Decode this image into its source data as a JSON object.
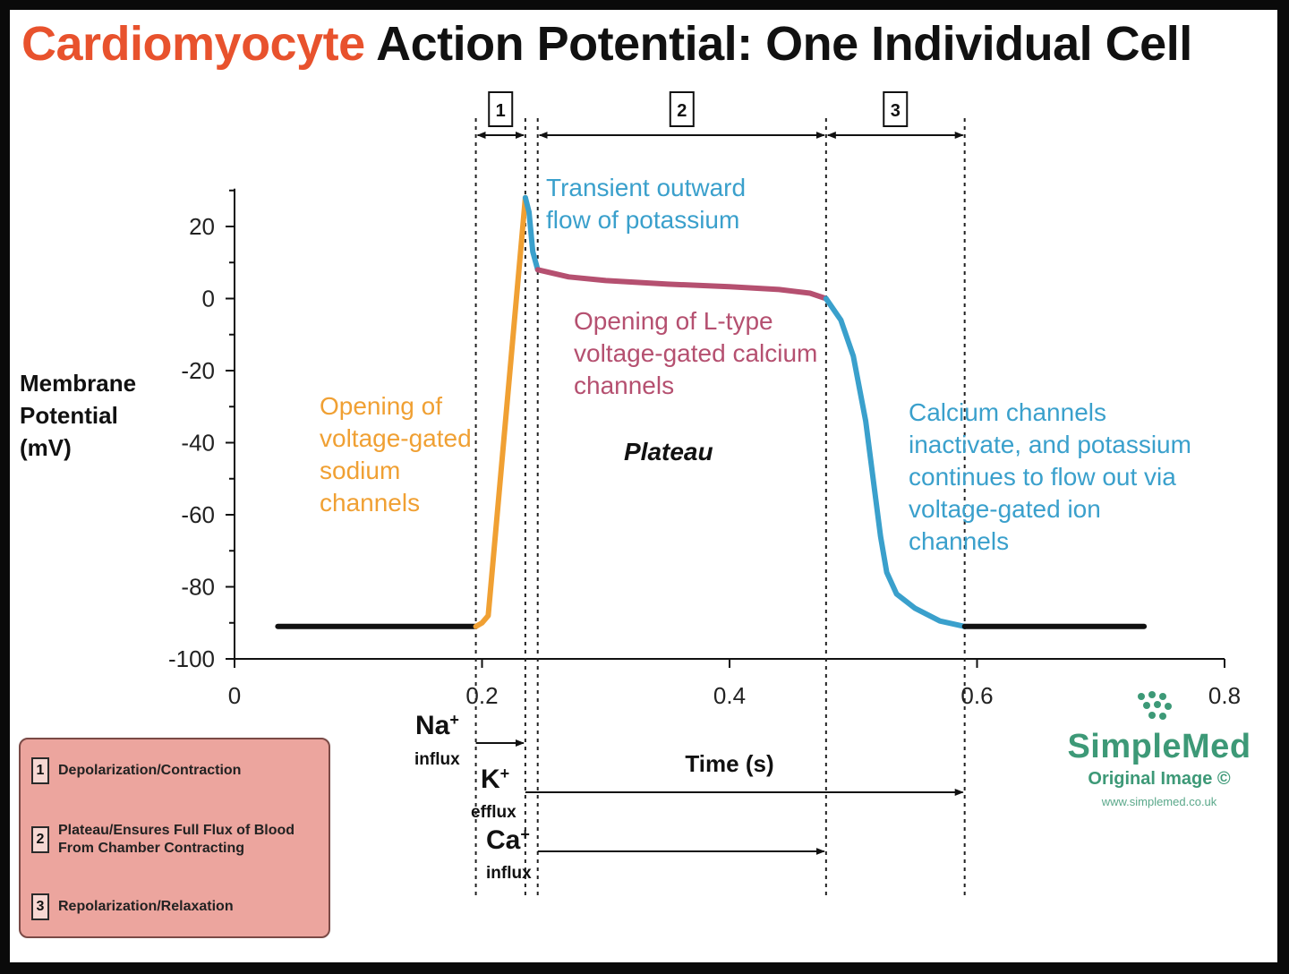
{
  "title": {
    "highlight": "Cardiomyocyte",
    "rest": "Action Potential: One Individual Cell"
  },
  "colors": {
    "title_highlight": "#e8522d",
    "sodium": "#f0a033",
    "potassium": "#3aa0cc",
    "calcium": "#b55070",
    "resting": "#111111",
    "legend_bg": "#eca59e",
    "brand": "#3d9977"
  },
  "chart_data": {
    "type": "line",
    "xlabel": "Time (s)",
    "ylabel": "Membrane Potential (mV)",
    "xlim": [
      0,
      0.8
    ],
    "ylim": [
      -100,
      30
    ],
    "x_ticks": [
      "0",
      "0.2",
      "0.4",
      "0.6",
      "0.8"
    ],
    "y_ticks": [
      "20",
      "0",
      "-20",
      "-40",
      "-60",
      "-80",
      "-100"
    ],
    "series": [
      {
        "segment": "resting",
        "color": "#111111",
        "points": [
          [
            0.035,
            -91
          ],
          [
            0.195,
            -91
          ]
        ]
      },
      {
        "segment": "depolarization",
        "color": "#f0a033",
        "points": [
          [
            0.195,
            -91
          ],
          [
            0.2,
            -90
          ],
          [
            0.205,
            -88
          ],
          [
            0.235,
            28
          ]
        ]
      },
      {
        "segment": "early-repolarization",
        "color": "#3aa0cc",
        "points": [
          [
            0.235,
            28
          ],
          [
            0.238,
            24
          ],
          [
            0.241,
            13
          ],
          [
            0.245,
            8
          ]
        ]
      },
      {
        "segment": "plateau",
        "color": "#b55070",
        "points": [
          [
            0.245,
            8
          ],
          [
            0.27,
            6
          ],
          [
            0.3,
            5
          ],
          [
            0.35,
            4
          ],
          [
            0.4,
            3.3
          ],
          [
            0.44,
            2.5
          ],
          [
            0.465,
            1.5
          ],
          [
            0.478,
            0
          ]
        ]
      },
      {
        "segment": "repolarization",
        "color": "#3aa0cc",
        "points": [
          [
            0.478,
            0
          ],
          [
            0.49,
            -6
          ],
          [
            0.5,
            -16
          ],
          [
            0.51,
            -34
          ],
          [
            0.516,
            -50
          ],
          [
            0.522,
            -66
          ],
          [
            0.527,
            -76
          ],
          [
            0.535,
            -82
          ],
          [
            0.55,
            -86
          ],
          [
            0.57,
            -89.5
          ],
          [
            0.59,
            -91
          ]
        ]
      },
      {
        "segment": "resting",
        "color": "#111111",
        "points": [
          [
            0.59,
            -91
          ],
          [
            0.735,
            -91
          ]
        ]
      }
    ],
    "phases": [
      {
        "label": "1",
        "x_start": 0.195,
        "x_end": 0.235
      },
      {
        "label": "2",
        "x_start": 0.245,
        "x_end": 0.478
      },
      {
        "label": "3",
        "x_start": 0.478,
        "x_end": 0.59
      }
    ],
    "ion_flows": [
      {
        "ion": "Na",
        "superscript": "+",
        "direction": "influx",
        "x_start": 0.195,
        "x_end": 0.235
      },
      {
        "ion": "K",
        "superscript": "+",
        "direction": "efflux",
        "x_start": 0.235,
        "x_end": 0.59
      },
      {
        "ion": "Ca",
        "superscript": "+",
        "direction": "influx",
        "x_start": 0.245,
        "x_end": 0.478
      }
    ],
    "annotations": [
      {
        "color": "#f0a033",
        "lines": [
          "Opening of",
          "voltage-gated",
          "sodium",
          "channels"
        ]
      },
      {
        "color": "#3aa0cc",
        "lines": [
          "Transient outward",
          "flow of potassium"
        ]
      },
      {
        "color": "#b55070",
        "lines": [
          "Opening of L-type",
          "voltage-gated calcium",
          "channels"
        ]
      },
      {
        "color": "#111111",
        "lines": [
          "Plateau"
        ]
      },
      {
        "color": "#3aa0cc",
        "lines": [
          "Calcium channels",
          "inactivate, and potassium",
          "continues to flow out via",
          "voltage-gated ion",
          "channels"
        ]
      }
    ]
  },
  "axis": {
    "ylabel_lines": [
      "Membrane",
      "Potential",
      "(mV)"
    ],
    "xlabel": "Time (s)"
  },
  "legend": [
    {
      "num": "1",
      "text": "Depolarization/Contraction"
    },
    {
      "num": "2",
      "text": "Plateau/Ensures Full Flux of Blood From Chamber Contracting"
    },
    {
      "num": "3",
      "text": "Repolarization/Relaxation"
    }
  ],
  "brand": {
    "name": "SimpleMed",
    "subtitle": "Original Image ©",
    "url": "www.simplemed.co.uk",
    "icon": "dots-logo-icon"
  }
}
